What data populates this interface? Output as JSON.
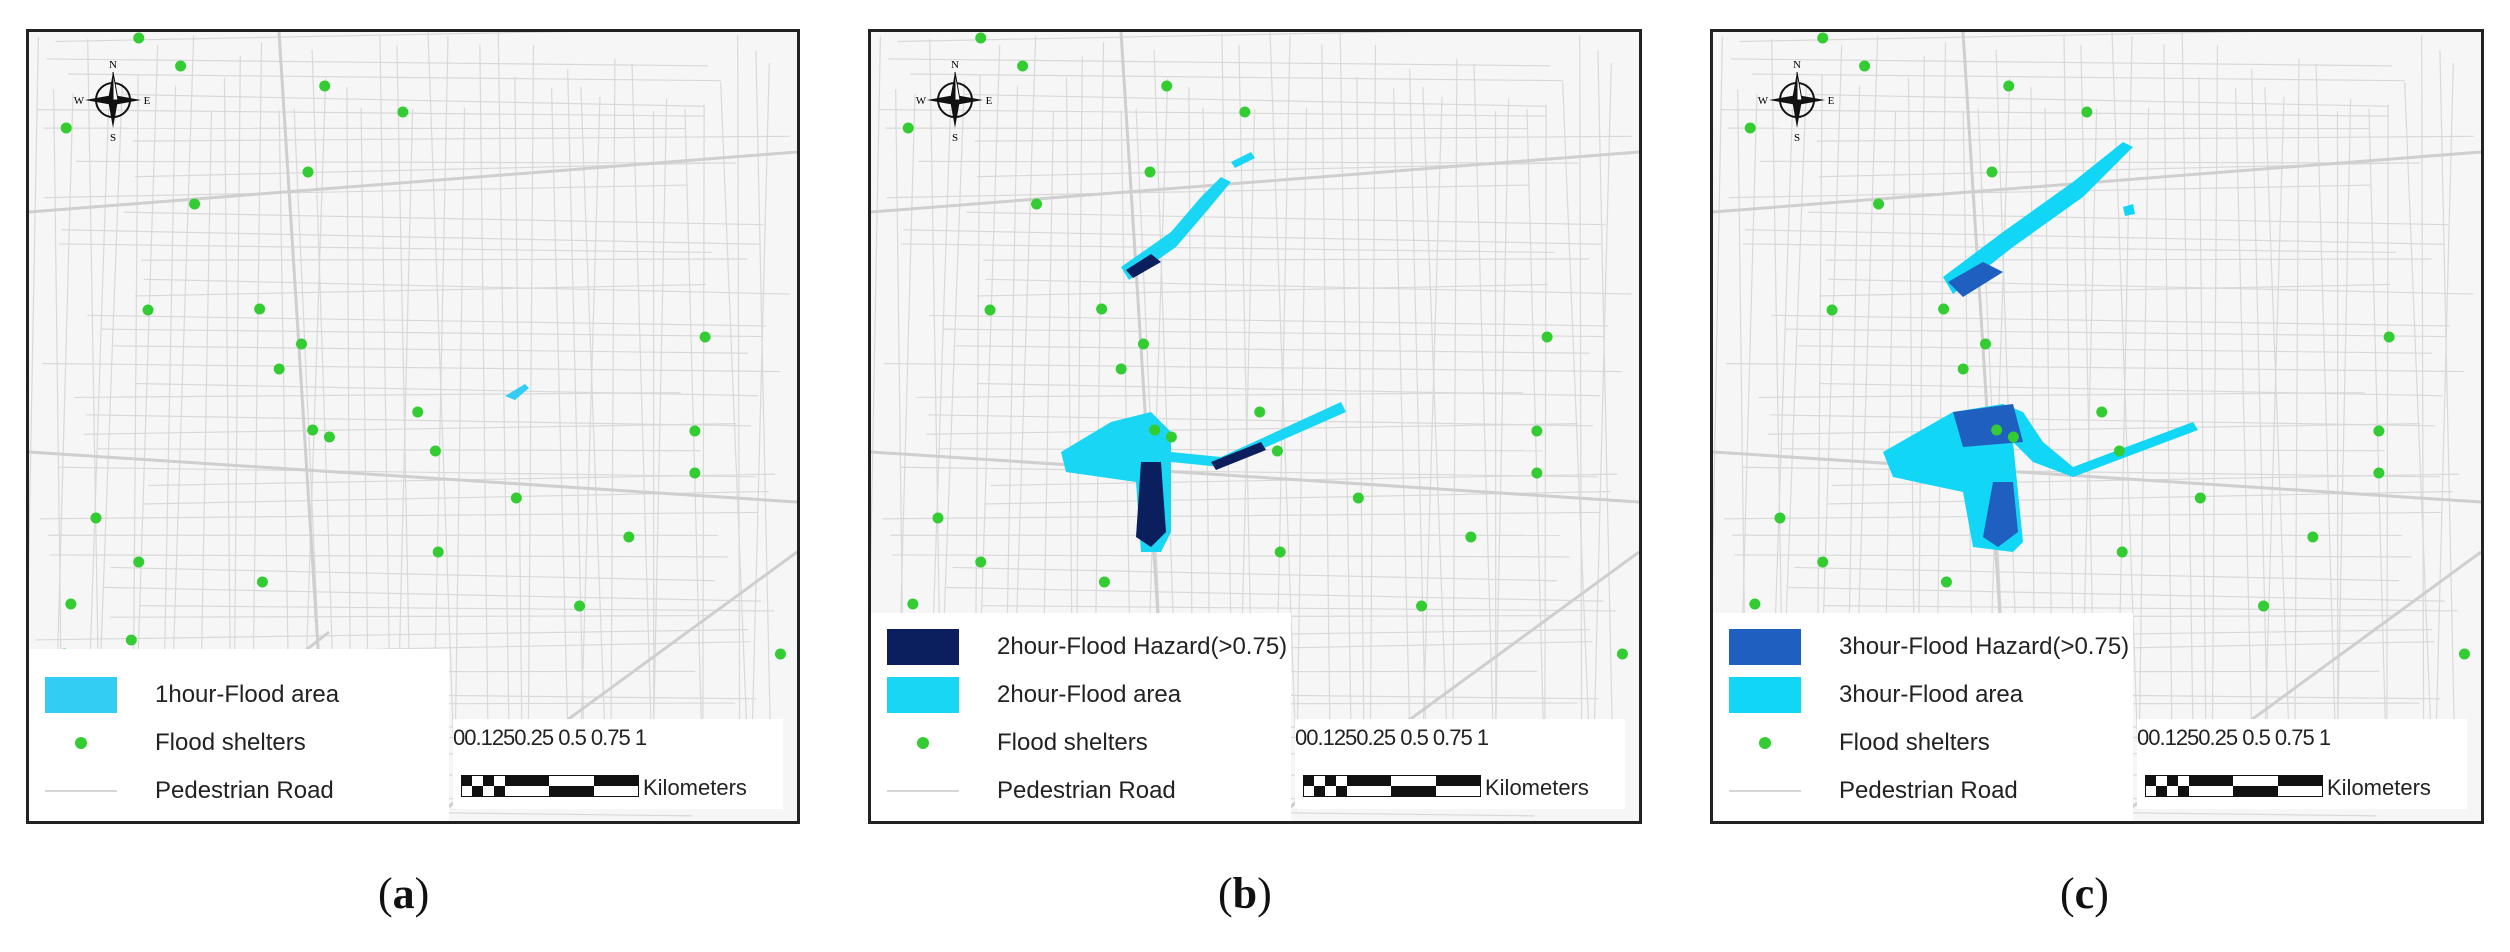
{
  "panels": [
    {
      "id": "a",
      "legend": [
        {
          "kind": "box",
          "color": "#33ccf2",
          "label": "1hour-Flood area"
        },
        {
          "kind": "dot",
          "color": "#33cc33",
          "label": "Flood shelters"
        },
        {
          "kind": "line",
          "color": "#d6d6d6",
          "label": "Pedestrian Road"
        }
      ],
      "caption_letter": "a"
    },
    {
      "id": "b",
      "legend": [
        {
          "kind": "box",
          "color": "#0b1e5e",
          "label": "2hour-Flood Hazard(>0.75)"
        },
        {
          "kind": "box",
          "color": "#19d6f5",
          "label": "2hour-Flood area"
        },
        {
          "kind": "dot",
          "color": "#33cc33",
          "label": "Flood shelters"
        },
        {
          "kind": "line",
          "color": "#d6d6d6",
          "label": "Pedestrian Road"
        }
      ],
      "caption_letter": "b"
    },
    {
      "id": "c",
      "legend": [
        {
          "kind": "box",
          "color": "#1f5fbf",
          "label": "3hour-Flood Hazard(>0.75)"
        },
        {
          "kind": "box",
          "color": "#12d6f5",
          "label": "3hour-Flood area"
        },
        {
          "kind": "dot",
          "color": "#33cc33",
          "label": "Flood shelters"
        },
        {
          "kind": "line",
          "color": "#d6d6d6",
          "label": "Pedestrian Road"
        }
      ],
      "caption_letter": "c"
    }
  ],
  "scale": {
    "ticks": "00.1250.25    0.5   0.75    1",
    "unit": "Kilometers"
  },
  "compass": {
    "n": "N",
    "s": "S",
    "e": "E",
    "w": "W"
  },
  "colors": {
    "shelter": "#33cc33",
    "road": "#d9d9d9",
    "background": "#f6f6f6"
  }
}
